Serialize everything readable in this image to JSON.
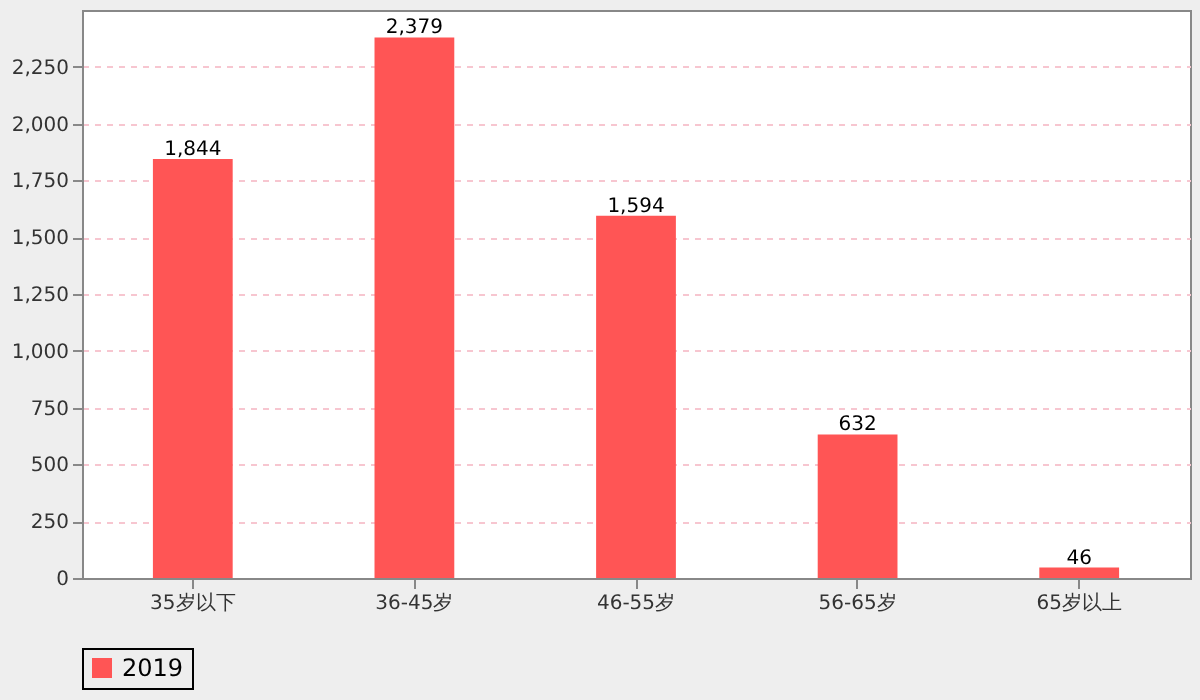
{
  "chart_data": {
    "type": "bar",
    "categories": [
      "35岁以下",
      "36-45岁",
      "46-55岁",
      "56-65岁",
      "65岁以上"
    ],
    "series": [
      {
        "name": "2019",
        "color": "#ff5555",
        "values": [
          1844,
          2379,
          1594,
          632,
          46
        ],
        "value_labels": [
          "1,844",
          "2,379",
          "1,594",
          "632",
          "46"
        ]
      }
    ],
    "ylim": [
      0,
      2500
    ],
    "yticks": [
      0,
      250,
      500,
      750,
      {
        "value": 1000,
        "label": "1,000"
      },
      {
        "value": 1250,
        "label": "1,250"
      },
      {
        "value": 1500,
        "label": "1,500"
      },
      {
        "value": 1750,
        "label": "1,750"
      },
      {
        "value": 2000,
        "label": "2,000"
      },
      {
        "value": 2250,
        "label": "2,250"
      }
    ],
    "grid": "y",
    "legend": "bottom"
  }
}
